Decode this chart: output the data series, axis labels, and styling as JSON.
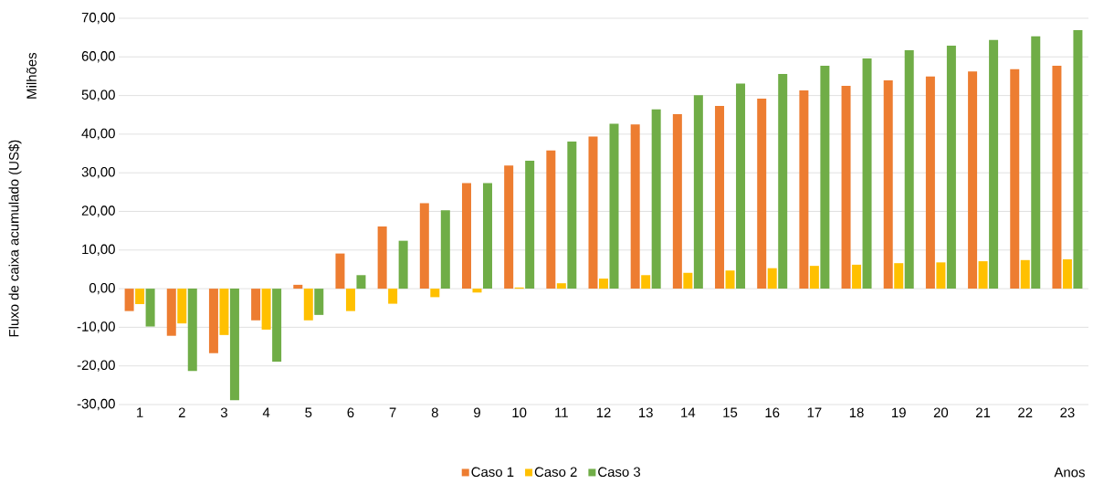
{
  "chart_data": {
    "type": "bar",
    "xlabel": "Anos",
    "ylabel": "Fluxo de caixa acumulado (US$)",
    "annotations": [
      "Milhões"
    ],
    "categories": [
      "1",
      "2",
      "3",
      "4",
      "5",
      "6",
      "7",
      "8",
      "9",
      "10",
      "11",
      "12",
      "13",
      "14",
      "15",
      "16",
      "17",
      "18",
      "19",
      "20",
      "21",
      "22",
      "23"
    ],
    "series": [
      {
        "name": "Caso 1",
        "color": "#ed7d31",
        "values": [
          -5.8,
          -12.2,
          -16.7,
          -8.2,
          1.0,
          9.1,
          16.1,
          22.1,
          27.3,
          31.9,
          35.8,
          39.4,
          42.5,
          45.2,
          47.3,
          49.2,
          51.3,
          52.5,
          53.9,
          54.9,
          56.2,
          56.8,
          57.7
        ]
      },
      {
        "name": "Caso 2",
        "color": "#ffc000",
        "values": [
          -4.0,
          -9.0,
          -12.0,
          -10.6,
          -8.2,
          -5.8,
          -3.9,
          -2.2,
          -1.0,
          0.3,
          1.4,
          2.6,
          3.5,
          4.1,
          4.7,
          5.3,
          5.9,
          6.2,
          6.6,
          6.8,
          7.1,
          7.4,
          7.6
        ]
      },
      {
        "name": "Caso 3",
        "color": "#70ad47",
        "values": [
          -9.8,
          -21.3,
          -28.9,
          -18.9,
          -6.8,
          3.5,
          12.4,
          20.3,
          27.3,
          33.1,
          38.1,
          42.7,
          46.4,
          50.1,
          53.1,
          55.6,
          57.7,
          59.6,
          61.7,
          62.9,
          64.4,
          65.3,
          66.9
        ]
      }
    ],
    "ylim": [
      -30,
      70
    ],
    "yticks": [
      {
        "value": -30,
        "label": "-30,00"
      },
      {
        "value": -20,
        "label": "-20,00"
      },
      {
        "value": -10,
        "label": "-10,00"
      },
      {
        "value": 0,
        "label": "0,00"
      },
      {
        "value": 10,
        "label": "10,00"
      },
      {
        "value": 20,
        "label": "20,00"
      },
      {
        "value": 30,
        "label": "30,00"
      },
      {
        "value": 40,
        "label": "40,00"
      },
      {
        "value": 50,
        "label": "50,00"
      },
      {
        "value": 60,
        "label": "60,00"
      },
      {
        "value": 70,
        "label": "70,00"
      }
    ],
    "grid": "y",
    "legend": "bottom"
  }
}
